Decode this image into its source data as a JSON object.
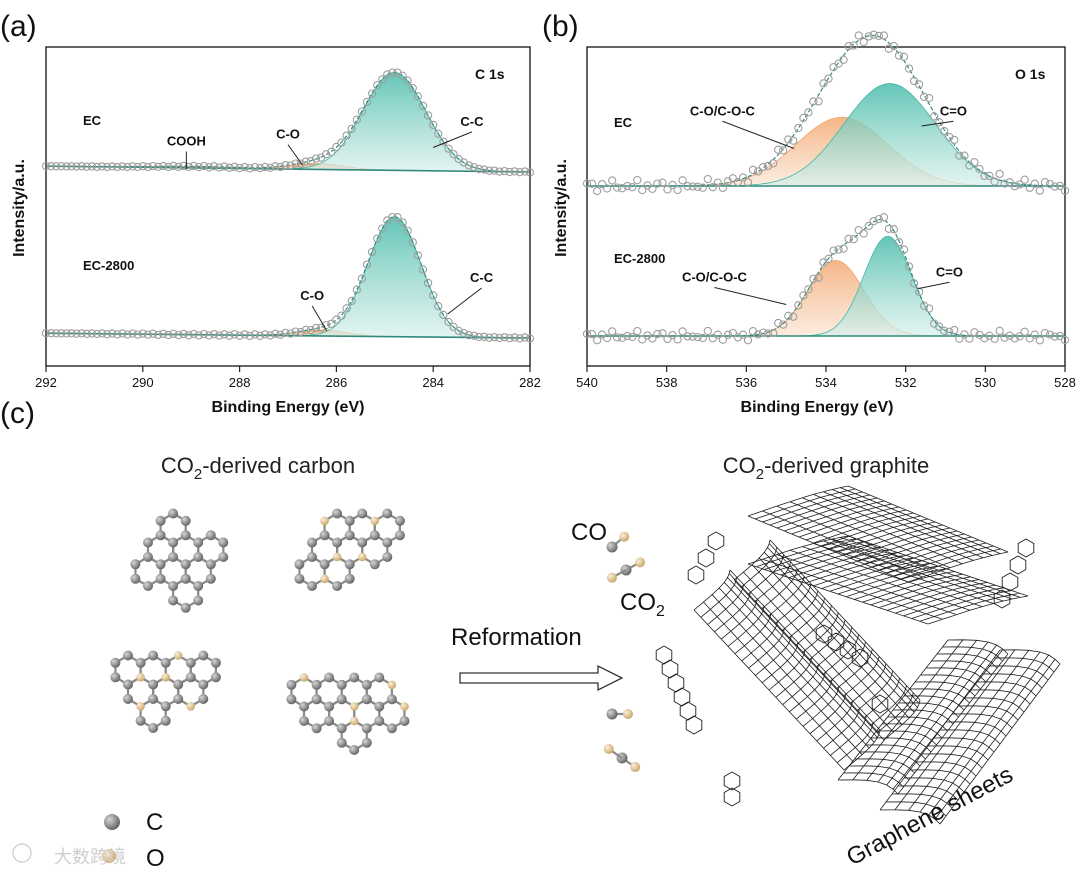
{
  "panel_labels": {
    "a": "(a)",
    "b": "(b)",
    "c": "(c)"
  },
  "colors": {
    "teal": "#3fb8a6",
    "teal_light": "#d7efea",
    "orange": "#f2a46a",
    "orange_light": "#fbe3d0",
    "circle_edge": "#9e9e9e",
    "baseline": "#2f8a7c",
    "carbon_atom": "#7a7a7a",
    "oxygen_atom": "#e8c894"
  },
  "chart_data": [
    {
      "id": "c1s",
      "type": "line",
      "title": "C 1s",
      "xlabel": "Binding Energy (eV)",
      "ylabel": "Intensity/a.u.",
      "xlim": [
        292,
        282
      ],
      "xticks": [
        "292",
        "290",
        "288",
        "286",
        "284",
        "282"
      ],
      "series": [
        {
          "name": "EC",
          "peaks": [
            {
              "name": "C-C",
              "center": 284.8,
              "width": 0.65,
              "height": 1.0,
              "color": "teal"
            },
            {
              "name": "C-O",
              "center": 286.4,
              "width": 0.55,
              "height": 0.06,
              "color": "orange"
            },
            {
              "name": "COOH",
              "center": 288.9,
              "width": 0.9,
              "height": 0.015,
              "color": "orange"
            }
          ],
          "baseline": [
            0.06,
            0.0
          ],
          "annotations": [
            {
              "text": "COOH",
              "x": 289.1,
              "y": 0.25,
              "tx": 289.1,
              "ty": 0.03
            },
            {
              "text": "C-O",
              "x": 287.0,
              "y": 0.32,
              "tx": 286.7,
              "ty": 0.07
            },
            {
              "text": "C-C",
              "x": 283.2,
              "y": 0.45,
              "tx": 284.0,
              "ty": 0.25
            }
          ]
        },
        {
          "name": "EC-2800",
          "peaks": [
            {
              "name": "C-C",
              "center": 284.8,
              "width": 0.55,
              "height": 1.0,
              "color": "teal"
            },
            {
              "name": "C-O",
              "center": 286.3,
              "width": 0.5,
              "height": 0.05,
              "color": "orange"
            }
          ],
          "baseline": [
            0.04,
            0.0
          ],
          "annotations": [
            {
              "text": "C-O",
              "x": 286.5,
              "y": 0.3,
              "tx": 286.2,
              "ty": 0.06
            },
            {
              "text": "C-C",
              "x": 283.0,
              "y": 0.45,
              "tx": 283.7,
              "ty": 0.2
            }
          ]
        }
      ]
    },
    {
      "id": "o1s",
      "type": "line",
      "title": "O 1s",
      "xlabel": "Binding Energy (eV)",
      "ylabel": "Intensity/a.u.",
      "xlim": [
        540,
        528
      ],
      "xticks": [
        "540",
        "538",
        "536",
        "534",
        "532",
        "530",
        "528"
      ],
      "series": [
        {
          "name": "EC",
          "peaks": [
            {
              "name": "C=O",
              "center": 532.4,
              "width": 1.15,
              "height": 0.82,
              "color": "teal"
            },
            {
              "name": "C-O/C-O-C",
              "center": 533.6,
              "width": 1.15,
              "height": 0.55,
              "color": "orange"
            }
          ],
          "baseline": [
            0.0,
            0.0
          ],
          "annotations": [
            {
              "text": "C-O/C-O-C",
              "x": 536.6,
              "y": 0.55,
              "tx": 534.8,
              "ty": 0.3
            },
            {
              "text": "C=O",
              "x": 530.8,
              "y": 0.55,
              "tx": 531.6,
              "ty": 0.48
            }
          ]
        },
        {
          "name": "EC-2800",
          "peaks": [
            {
              "name": "C=O",
              "center": 532.45,
              "width": 0.6,
              "height": 0.95,
              "color": "teal"
            },
            {
              "name": "C-O/C-O-C",
              "center": 533.75,
              "width": 0.7,
              "height": 0.72,
              "color": "orange"
            }
          ],
          "baseline": [
            0.0,
            0.0
          ],
          "annotations": [
            {
              "text": "C-O/C-O-C",
              "x": 536.8,
              "y": 0.5,
              "tx": 535.0,
              "ty": 0.3
            },
            {
              "text": "C=O",
              "x": 530.9,
              "y": 0.55,
              "tx": 531.7,
              "ty": 0.45
            }
          ]
        }
      ]
    }
  ],
  "schematic": {
    "left_title_prefix": "CO",
    "left_title_sub": "2",
    "left_title_suffix": "-derived carbon",
    "right_title_prefix": "CO",
    "right_title_sub": "2",
    "right_title_suffix": "-derived graphite",
    "arrow_label": "Reformation",
    "co_label": "CO",
    "co2_prefix": "CO",
    "co2_sub": "2",
    "graphene_label": "Graphene sheets",
    "legend_c": "C",
    "legend_o": "O",
    "watermark": "大数跨境"
  }
}
